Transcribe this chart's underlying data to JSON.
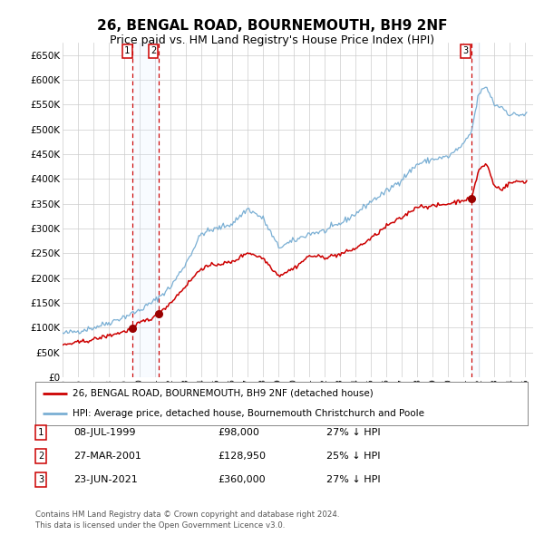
{
  "title": "26, BENGAL ROAD, BOURNEMOUTH, BH9 2NF",
  "subtitle": "Price paid vs. HM Land Registry's House Price Index (HPI)",
  "title_fontsize": 11,
  "subtitle_fontsize": 9,
  "ylim": [
    0,
    675000
  ],
  "yticks": [
    0,
    50000,
    100000,
    150000,
    200000,
    250000,
    300000,
    350000,
    400000,
    450000,
    500000,
    550000,
    600000,
    650000
  ],
  "purchase_years_float": [
    1999.54,
    2001.23,
    2021.48
  ],
  "purchase_prices": [
    98000,
    128950,
    360000
  ],
  "purchase_labels": [
    "1",
    "2",
    "3"
  ],
  "table_rows": [
    [
      "1",
      "08-JUL-1999",
      "£98,000",
      "27% ↓ HPI"
    ],
    [
      "2",
      "27-MAR-2001",
      "£128,950",
      "25% ↓ HPI"
    ],
    [
      "3",
      "23-JUN-2021",
      "£360,000",
      "27% ↓ HPI"
    ]
  ],
  "legend_line1": "26, BENGAL ROAD, BOURNEMOUTH, BH9 2NF (detached house)",
  "legend_line2": "HPI: Average price, detached house, Bournemouth Christchurch and Poole",
  "footer_line1": "Contains HM Land Registry data © Crown copyright and database right 2024.",
  "footer_line2": "This data is licensed under the Open Government Licence v3.0.",
  "hpi_color": "#7aafd4",
  "price_color": "#cc0000",
  "marker_color": "#990000",
  "dashed_line_color": "#cc0000",
  "shade_color": "#ddeeff",
  "grid_color": "#cccccc",
  "background_color": "#ffffff",
  "hpi_keypoints_year": [
    1995,
    1996,
    1997,
    1998,
    1999,
    2000,
    2001,
    2002,
    2003,
    2004,
    2005,
    2006,
    2007,
    2008,
    2009,
    2010,
    2011,
    2012,
    2013,
    2014,
    2015,
    2016,
    2017,
    2018,
    2019,
    2020,
    2021,
    2021.5,
    2022,
    2022.5,
    2023,
    2023.5,
    2024,
    2024.5,
    2025
  ],
  "hpi_keypoints_val": [
    88000,
    93000,
    100000,
    110000,
    122000,
    135000,
    155000,
    182000,
    230000,
    290000,
    300000,
    310000,
    340000,
    320000,
    262000,
    275000,
    290000,
    295000,
    310000,
    330000,
    355000,
    375000,
    400000,
    430000,
    440000,
    445000,
    470000,
    495000,
    575000,
    585000,
    550000,
    545000,
    530000,
    530000,
    530000
  ],
  "price_keypoints_year": [
    1995,
    1996,
    1997,
    1998,
    1999.0,
    1999.54,
    2000,
    2001.0,
    2001.23,
    2002,
    2003,
    2004,
    2005,
    2006,
    2007,
    2008,
    2009,
    2010,
    2011,
    2012,
    2013,
    2014,
    2015,
    2016,
    2017,
    2018,
    2019,
    2020,
    2021.0,
    2021.48,
    2022.0,
    2022.5,
    2023,
    2023.5,
    2024,
    2024.5,
    2025
  ],
  "price_keypoints_val": [
    65000,
    70000,
    76000,
    84000,
    92000,
    98000,
    110000,
    122000,
    128950,
    150000,
    185000,
    220000,
    228000,
    232000,
    252000,
    240000,
    205000,
    220000,
    245000,
    242000,
    248000,
    260000,
    280000,
    305000,
    322000,
    345000,
    345000,
    350000,
    358000,
    360000,
    420000,
    430000,
    385000,
    380000,
    392000,
    395000,
    395000
  ]
}
